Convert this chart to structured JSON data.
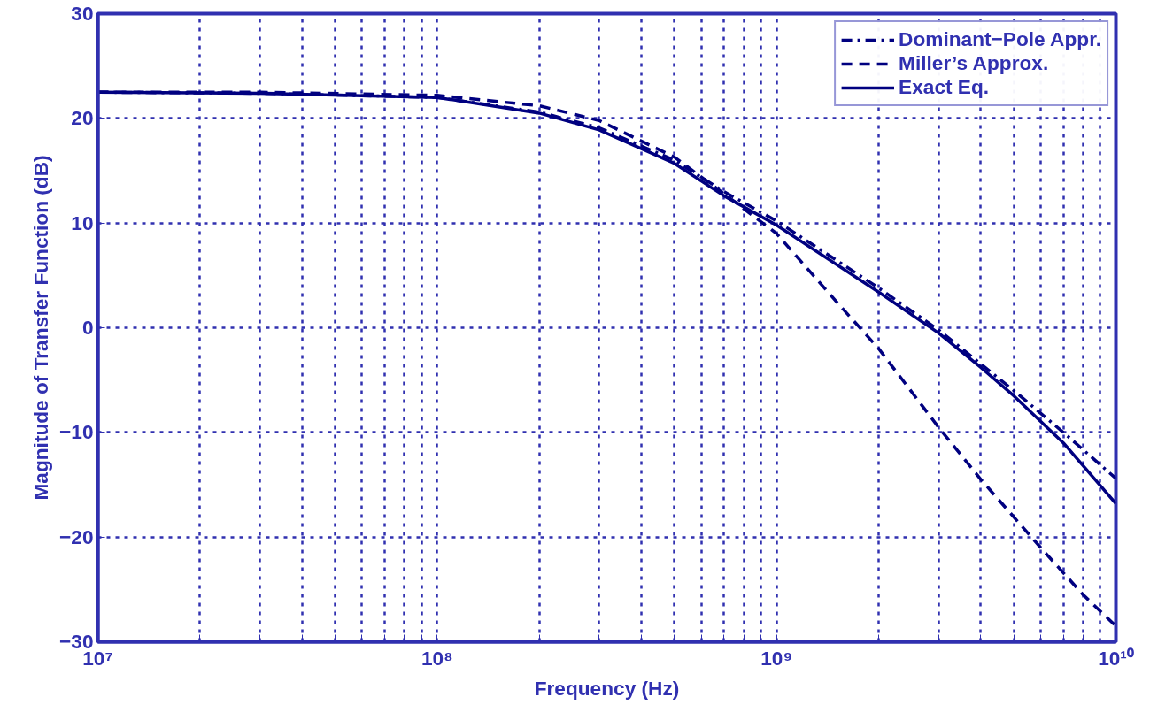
{
  "chart_data": {
    "type": "line",
    "xlabel": "Frequency (Hz)",
    "ylabel": "Magnitude of Transfer Function (dB)",
    "log": "x",
    "grid": true,
    "legend": "top right",
    "xlim": [
      10000000,
      10000000000
    ],
    "ylim": [
      -30,
      30
    ],
    "xticks": [
      {
        "value": 10000000,
        "label": "10⁷"
      },
      {
        "value": 20000000,
        "label": null
      },
      {
        "value": 30000000,
        "label": null
      },
      {
        "value": 40000000,
        "label": null
      },
      {
        "value": 50000000,
        "label": null
      },
      {
        "value": 60000000,
        "label": null
      },
      {
        "value": 70000000,
        "label": null
      },
      {
        "value": 80000000,
        "label": null
      },
      {
        "value": 90000000,
        "label": null
      },
      {
        "value": 100000000,
        "label": "10⁸"
      },
      {
        "value": 200000000,
        "label": null
      },
      {
        "value": 300000000,
        "label": null
      },
      {
        "value": 400000000,
        "label": null
      },
      {
        "value": 500000000,
        "label": null
      },
      {
        "value": 600000000,
        "label": null
      },
      {
        "value": 700000000,
        "label": null
      },
      {
        "value": 800000000,
        "label": null
      },
      {
        "value": 900000000,
        "label": null
      },
      {
        "value": 1000000000,
        "label": "10⁹"
      },
      {
        "value": 2000000000,
        "label": null
      },
      {
        "value": 3000000000,
        "label": null
      },
      {
        "value": 4000000000,
        "label": null
      },
      {
        "value": 5000000000,
        "label": null
      },
      {
        "value": 6000000000,
        "label": null
      },
      {
        "value": 7000000000,
        "label": null
      },
      {
        "value": 8000000000,
        "label": null
      },
      {
        "value": 9000000000,
        "label": null
      },
      {
        "value": 10000000000,
        "label": "10¹⁰"
      }
    ],
    "yticks": [
      -30,
      -20,
      -10,
      0,
      10,
      20,
      30
    ],
    "series": [
      {
        "name": "Dominant−Pole Appr.",
        "color": "#000080",
        "line_style": "dashdot",
        "x": [
          10000000,
          30000000,
          100000000,
          200000000,
          300000000,
          500000000,
          700000000,
          1000000000,
          2000000000,
          3000000000,
          5000000000,
          7000000000,
          10000000000
        ],
        "values": [
          22.5,
          22.4,
          22.0,
          20.6,
          19.1,
          16.0,
          13.0,
          10.2,
          3.8,
          -0.2,
          -6.0,
          -10.0,
          -14.4
        ]
      },
      {
        "name": "Miller’s Approx.",
        "color": "#000080",
        "line_style": "dashed",
        "x": [
          10000000,
          30000000,
          100000000,
          200000000,
          300000000,
          500000000,
          700000000,
          1000000000,
          1500000000,
          2000000000,
          3000000000,
          4000000000,
          6000000000,
          8000000000,
          10000000000
        ],
        "values": [
          22.5,
          22.5,
          22.2,
          21.2,
          19.8,
          16.3,
          12.8,
          9.0,
          2.5,
          -2.0,
          -9.5,
          -14.5,
          -21.0,
          -25.5,
          -28.5
        ]
      },
      {
        "name": "Exact Eq.",
        "color": "#000080",
        "line_style": "solid",
        "x": [
          10000000,
          30000000,
          100000000,
          200000000,
          300000000,
          500000000,
          700000000,
          1000000000,
          2000000000,
          3000000000,
          4000000000,
          5000000000,
          7000000000,
          10000000000
        ],
        "values": [
          22.5,
          22.4,
          22.0,
          20.5,
          18.9,
          15.7,
          12.6,
          9.8,
          3.4,
          -0.5,
          -3.8,
          -6.5,
          -11.0,
          -16.8
        ]
      }
    ]
  }
}
